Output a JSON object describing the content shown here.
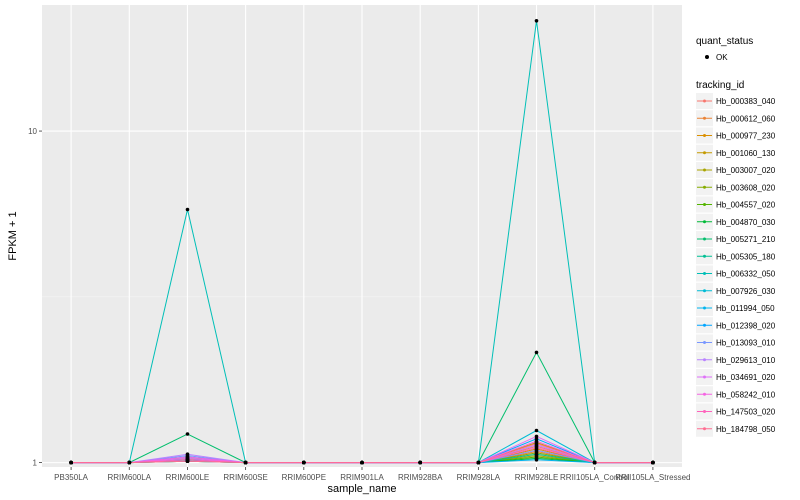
{
  "chart_data": {
    "type": "line",
    "xlabel": "sample_name",
    "ylabel": "FPKM + 1",
    "yscale": "log",
    "ylim": [
      0.97,
      24
    ],
    "yticks": [
      1,
      10
    ],
    "ytick_labels": [
      "1",
      "10"
    ],
    "grid": true,
    "categories": [
      "PB350LA",
      "RRIM600LA",
      "RRIM600LE",
      "RRIM600SE",
      "RRIM600PE",
      "RRIM901LA",
      "RRIM928BA",
      "RRIM928LA",
      "RRIM928LE",
      "RRII105LA_Control",
      "RRII105LA_Stressed"
    ],
    "legend": {
      "placement": "right",
      "shape_title": "quant_status",
      "shape_entry": "OK",
      "color_title": "tracking_id"
    },
    "series": [
      {
        "name": "Hb_000383_040",
        "color": "#F8766D",
        "values": [
          1,
          1,
          1.03,
          1,
          1,
          1,
          1,
          1,
          1.12,
          1,
          1
        ]
      },
      {
        "name": "Hb_000612_060",
        "color": "#EB8335",
        "values": [
          1,
          1,
          1.02,
          1,
          1,
          1,
          1,
          1,
          1.08,
          1,
          1
        ]
      },
      {
        "name": "Hb_000977_230",
        "color": "#DA8F00",
        "values": [
          1,
          1,
          1.02,
          1,
          1,
          1,
          1,
          1,
          1.1,
          1,
          1
        ]
      },
      {
        "name": "Hb_001060_130",
        "color": "#C49A00",
        "values": [
          1,
          1,
          1.01,
          1,
          1,
          1,
          1,
          1,
          1.15,
          1,
          1
        ]
      },
      {
        "name": "Hb_003007_020",
        "color": "#A9A400",
        "values": [
          1,
          1,
          1.02,
          1,
          1,
          1,
          1,
          1,
          1.05,
          1,
          1
        ]
      },
      {
        "name": "Hb_003608_020",
        "color": "#86AC00",
        "values": [
          1,
          1,
          1.03,
          1,
          1,
          1,
          1,
          1,
          1.07,
          1,
          1
        ]
      },
      {
        "name": "Hb_004557_020",
        "color": "#53B400",
        "values": [
          1,
          1,
          1.02,
          1,
          1,
          1,
          1,
          1,
          1.04,
          1,
          1
        ]
      },
      {
        "name": "Hb_004870_030",
        "color": "#00BA38",
        "values": [
          1,
          1,
          1.01,
          1,
          1,
          1,
          1,
          1,
          1.03,
          1,
          1
        ]
      },
      {
        "name": "Hb_005271_210",
        "color": "#00BE6C",
        "values": [
          1,
          1,
          1.22,
          1,
          1,
          1,
          1,
          1,
          2.15,
          1,
          1
        ]
      },
      {
        "name": "Hb_005305_180",
        "color": "#00C094",
        "values": [
          1,
          1,
          1.04,
          1,
          1,
          1,
          1,
          1,
          1.06,
          1,
          1
        ]
      },
      {
        "name": "Hb_006332_050",
        "color": "#00BFB7",
        "values": [
          1,
          1,
          5.8,
          1,
          1,
          1,
          1,
          1,
          21.5,
          1,
          1
        ]
      },
      {
        "name": "Hb_007926_030",
        "color": "#00BCD6",
        "values": [
          1,
          1,
          1.02,
          1,
          1,
          1,
          1,
          1,
          1.25,
          1,
          1
        ]
      },
      {
        "name": "Hb_011994_050",
        "color": "#00B4EF",
        "values": [
          1,
          1,
          1.01,
          1,
          1,
          1,
          1,
          1,
          1.02,
          1,
          1
        ]
      },
      {
        "name": "Hb_012398_020",
        "color": "#00A5FF",
        "values": [
          1,
          1,
          1.02,
          1,
          1,
          1,
          1,
          1,
          1.18,
          1,
          1
        ]
      },
      {
        "name": "Hb_013093_010",
        "color": "#7997FF",
        "values": [
          1,
          1,
          1.05,
          1,
          1,
          1,
          1,
          1,
          1.09,
          1,
          1
        ]
      },
      {
        "name": "Hb_029613_010",
        "color": "#B983FF",
        "values": [
          1,
          1,
          1.06,
          1,
          1,
          1,
          1,
          1,
          1.13,
          1,
          1
        ]
      },
      {
        "name": "Hb_034691_020",
        "color": "#DF70F8",
        "values": [
          1,
          1,
          1.03,
          1,
          1,
          1,
          1,
          1,
          1.2,
          1,
          1
        ]
      },
      {
        "name": "Hb_058242_010",
        "color": "#F564E3",
        "values": [
          1,
          1,
          1.04,
          1,
          1,
          1,
          1,
          1,
          1.16,
          1,
          1
        ]
      },
      {
        "name": "Hb_147503_020",
        "color": "#FF62BC",
        "values": [
          1,
          1,
          1.02,
          1,
          1,
          1,
          1,
          1,
          1.11,
          1,
          1
        ]
      },
      {
        "name": "Hb_184798_050",
        "color": "#FF6C91",
        "values": [
          1,
          1,
          1.01,
          1,
          1,
          1,
          1,
          1,
          1.14,
          1,
          1
        ]
      }
    ]
  }
}
